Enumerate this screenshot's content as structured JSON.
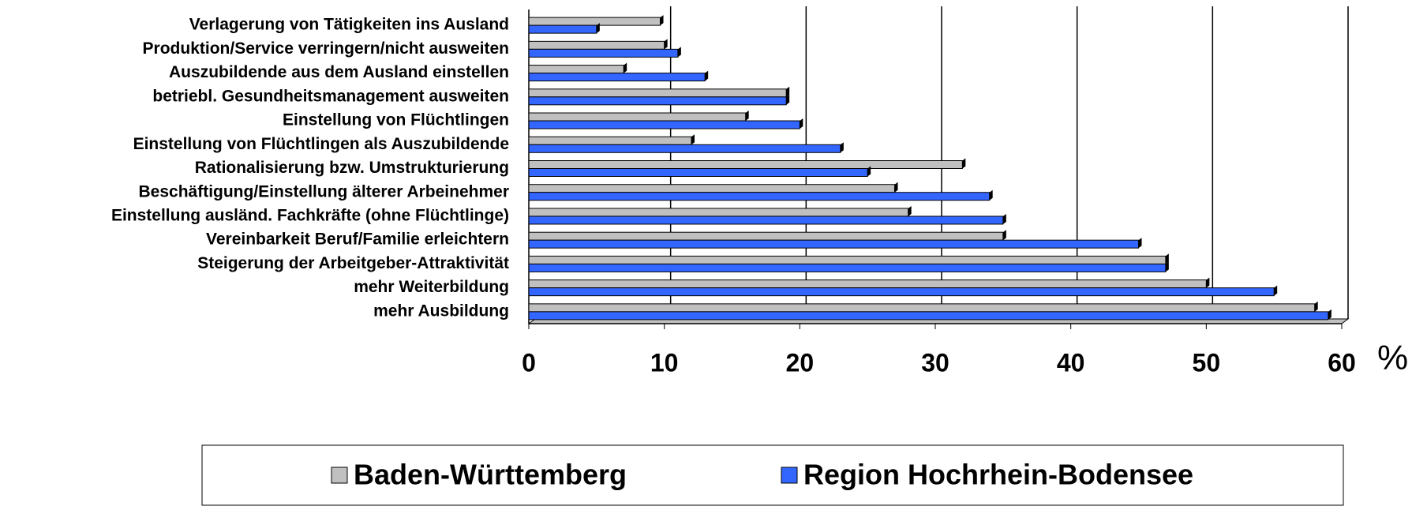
{
  "chart_data": {
    "type": "bar",
    "orientation": "horizontal",
    "categories": [
      "Verlagerung von Tätigkeiten ins Ausland",
      "Produktion/Service verringern/nicht ausweiten",
      "Auszubildende aus dem Ausland einstellen",
      "betriebl. Gesundheitsmanagement ausweiten",
      "Einstellung von Flüchtlingen",
      "Einstellung von Flüchtlingen als Auszubildende",
      "Rationalisierung bzw. Umstrukturierung",
      "Beschäftigung/Einstellung älterer Arbeinehmer",
      "Einstellung ausländ. Fachkräfte (ohne Flüchtlinge)",
      "Vereinbarkeit Beruf/Familie erleichtern",
      "Steigerung der Arbeitgeber-Attraktivität",
      "mehr Weiterbildung",
      "mehr Ausbildung"
    ],
    "series": [
      {
        "name": "Baden-Württemberg",
        "color": "#c0c0c0",
        "values": [
          9.7,
          10,
          7,
          19,
          16,
          12,
          32,
          27,
          28,
          35,
          47,
          50,
          58
        ]
      },
      {
        "name": "Region Hochrhein-Bodensee",
        "color": "#3366ff",
        "values": [
          5,
          11,
          13,
          19,
          20,
          23,
          25,
          34,
          35,
          45,
          47,
          55,
          59
        ]
      }
    ],
    "xlim": [
      0,
      60
    ],
    "xticks": [
      0,
      10,
      20,
      30,
      40,
      50,
      60
    ],
    "x_unit": "%",
    "grid": true,
    "legend": "bottom"
  }
}
